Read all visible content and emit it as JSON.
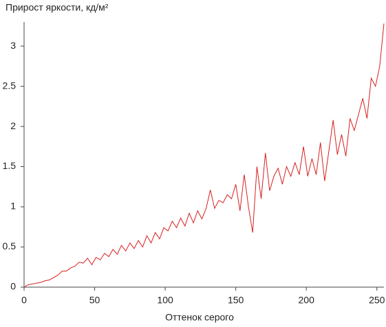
{
  "chart_data": {
    "type": "line",
    "title": "Прирост яркости, кд/м²",
    "x_label": "Оттенок серого",
    "x": [
      0,
      3,
      6,
      9,
      12,
      15,
      18,
      21,
      24,
      27,
      30,
      33,
      36,
      39,
      42,
      45,
      48,
      51,
      54,
      57,
      60,
      63,
      66,
      69,
      72,
      75,
      78,
      81,
      84,
      87,
      90,
      93,
      96,
      99,
      102,
      105,
      108,
      111,
      114,
      117,
      120,
      123,
      126,
      129,
      132,
      135,
      138,
      141,
      144,
      147,
      150,
      153,
      156,
      159,
      162,
      165,
      168,
      171,
      174,
      177,
      180,
      183,
      186,
      189,
      192,
      195,
      198,
      201,
      204,
      207,
      210,
      213,
      216,
      219,
      222,
      225,
      228,
      231,
      234,
      237,
      240,
      243,
      246,
      249,
      252,
      255
    ],
    "series": [
      {
        "name": "Прирост яркости",
        "color": "#d81e1e",
        "values": [
          0,
          0.03,
          0.04,
          0.05,
          0.06,
          0.08,
          0.09,
          0.12,
          0.15,
          0.2,
          0.2,
          0.24,
          0.26,
          0.31,
          0.3,
          0.36,
          0.28,
          0.37,
          0.34,
          0.42,
          0.38,
          0.47,
          0.41,
          0.52,
          0.45,
          0.55,
          0.48,
          0.58,
          0.5,
          0.64,
          0.55,
          0.68,
          0.6,
          0.74,
          0.7,
          0.82,
          0.74,
          0.86,
          0.76,
          0.92,
          0.8,
          0.95,
          0.85,
          0.98,
          1.21,
          0.98,
          1.08,
          1.05,
          1.15,
          1.1,
          1.28,
          0.95,
          1.4,
          1.0,
          0.68,
          1.5,
          1.1,
          1.67,
          1.2,
          1.38,
          1.48,
          1.28,
          1.5,
          1.38,
          1.55,
          1.4,
          1.75,
          1.38,
          1.6,
          1.4,
          1.8,
          1.32,
          1.7,
          2.08,
          1.65,
          1.9,
          1.63,
          2.1,
          1.95,
          2.15,
          2.35,
          2.1,
          2.6,
          2.5,
          2.75,
          3.28
        ]
      }
    ],
    "xlim": [
      0,
      255
    ],
    "xticks": [
      0,
      50,
      100,
      150,
      200,
      250
    ],
    "ylim": [
      0,
      3.3
    ],
    "yticks": [
      0,
      0.5,
      1,
      1.5,
      2,
      2.5,
      3
    ],
    "grid": false
  }
}
